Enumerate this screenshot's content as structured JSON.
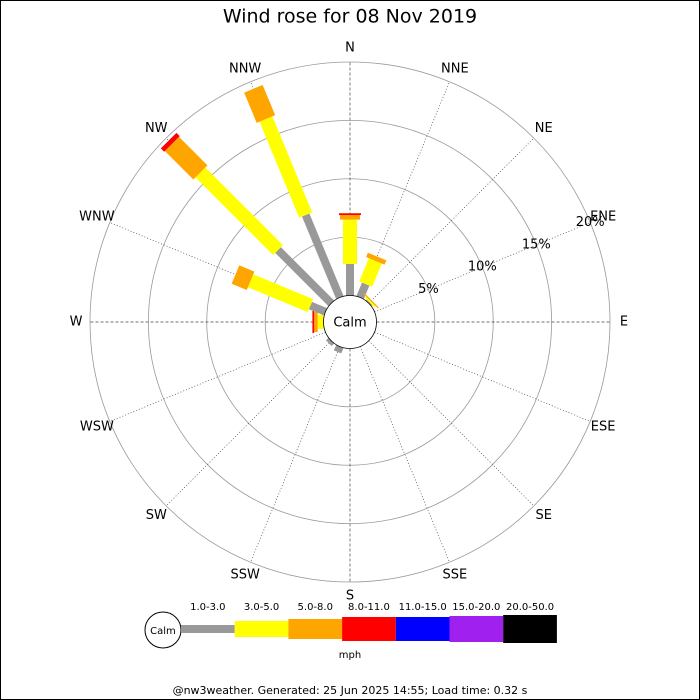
{
  "chart_data": {
    "type": "windrose",
    "title": "Wind rose for 08 Nov 2019",
    "directions": [
      "N",
      "NNE",
      "NE",
      "ENE",
      "E",
      "ESE",
      "SE",
      "SSE",
      "S",
      "SSW",
      "SW",
      "WSW",
      "W",
      "WNW",
      "NW",
      "NNW"
    ],
    "calm_label": "Calm",
    "unit": "mph",
    "rlim": [
      0,
      20
    ],
    "rticks": [
      {
        "value": 5,
        "label": "5%"
      },
      {
        "value": 10,
        "label": "10%"
      },
      {
        "value": 15,
        "label": "15%"
      },
      {
        "value": 20,
        "label": "20%"
      }
    ],
    "series": [
      {
        "name": "1.0-3.0",
        "color": "#999999",
        "values": [
          2.7,
          1.25,
          0.1,
          0,
          0,
          0,
          0,
          0,
          0,
          0.5,
          0.3,
          0,
          0,
          1.4,
          6.45,
          7.65
        ]
      },
      {
        "name": "3.0-5.0",
        "color": "#ffff00",
        "values": [
          3.8,
          2.15,
          0.15,
          0,
          0,
          0,
          0,
          0,
          0,
          0,
          0,
          0,
          0.5,
          5.55,
          9.4,
          8.9
        ]
      },
      {
        "name": "5.0-8.0",
        "color": "#ffa500",
        "values": [
          0.4,
          0.4,
          0.1,
          0,
          0,
          0,
          0,
          0,
          0,
          0,
          0,
          0,
          0.3,
          1.4,
          3.45,
          2.8
        ]
      },
      {
        "name": "8.0-11.0",
        "color": "#ff0000",
        "values": [
          0.15,
          0,
          0,
          0,
          0,
          0,
          0,
          0,
          0,
          0,
          0,
          0,
          0.15,
          0,
          0.4,
          0
        ]
      },
      {
        "name": "11.0-15.0",
        "color": "#0000ff",
        "values": [
          0,
          0,
          0,
          0,
          0,
          0,
          0,
          0,
          0,
          0,
          0,
          0,
          0,
          0,
          0,
          0
        ]
      },
      {
        "name": "15.0-20.0",
        "color": "#a020f0",
        "values": [
          0,
          0,
          0,
          0,
          0,
          0,
          0,
          0,
          0,
          0,
          0,
          0,
          0,
          0,
          0,
          0
        ]
      },
      {
        "name": "20.0-50.0",
        "color": "#000000",
        "values": [
          0,
          0,
          0,
          0,
          0,
          0,
          0,
          0,
          0,
          0,
          0,
          0,
          0,
          0,
          0,
          0
        ]
      }
    ],
    "footer": "@nw3weather. Generated: 25 Jun 2025 14:55; Load time: 0.32 s"
  }
}
